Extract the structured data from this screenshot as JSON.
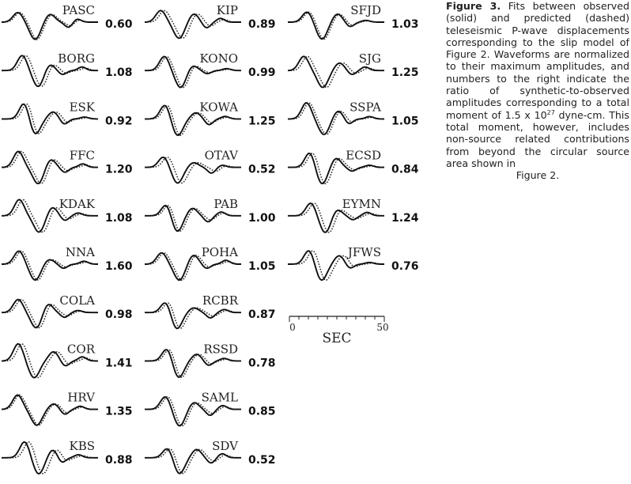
{
  "figure": {
    "columns": [
      [
        {
          "station": "PASC",
          "ratio": "0.60"
        },
        {
          "station": "BORG",
          "ratio": "1.08"
        },
        {
          "station": "ESK",
          "ratio": "0.92"
        },
        {
          "station": "FFC",
          "ratio": "1.20"
        },
        {
          "station": "KDAK",
          "ratio": "1.08"
        },
        {
          "station": "NNA",
          "ratio": "1.60"
        },
        {
          "station": "COLA",
          "ratio": "0.98"
        },
        {
          "station": "COR",
          "ratio": "1.41"
        },
        {
          "station": "HRV",
          "ratio": "1.35"
        },
        {
          "station": "KBS",
          "ratio": "0.88"
        }
      ],
      [
        {
          "station": "KIP",
          "ratio": "0.89"
        },
        {
          "station": "KONO",
          "ratio": "0.99"
        },
        {
          "station": "KOWA",
          "ratio": "1.25"
        },
        {
          "station": "OTAV",
          "ratio": "0.52"
        },
        {
          "station": "PAB",
          "ratio": "1.00"
        },
        {
          "station": "POHA",
          "ratio": "1.05"
        },
        {
          "station": "RCBR",
          "ratio": "0.87"
        },
        {
          "station": "RSSD",
          "ratio": "0.78"
        },
        {
          "station": "SAML",
          "ratio": "0.85"
        },
        {
          "station": "SDV",
          "ratio": "0.52"
        }
      ],
      [
        {
          "station": "SFJD",
          "ratio": "1.03"
        },
        {
          "station": "SJG",
          "ratio": "1.25"
        },
        {
          "station": "SSPA",
          "ratio": "1.05"
        },
        {
          "station": "ECSD",
          "ratio": "0.84"
        },
        {
          "station": "EYMN",
          "ratio": "1.24"
        },
        {
          "station": "JFWS",
          "ratio": "0.76"
        }
      ]
    ],
    "scale": {
      "start_label": "0",
      "end_label": "50",
      "unit_label": "SEC"
    }
  },
  "caption": {
    "label": "Figure 3.",
    "text_before_sup": "Fits between observed (solid) and predicted (dashed) teleseismic P-wave displacements corresponding to the slip model of Figure 2. Waveforms are normalized to their maximum amplitudes, and numbers to the right indicate the ratio of synthetic-to-observed amplitudes corresponding to a total moment of 1.5 x 10",
    "sup": "27",
    "text_after_sup": " dyne-cm. This total moment, however, includes non-source related contributions from beyond the circular source area shown in",
    "last_line": "Figure 2."
  }
}
